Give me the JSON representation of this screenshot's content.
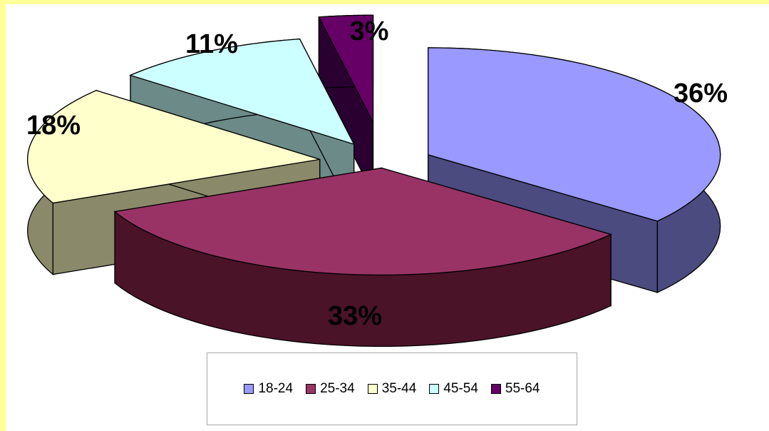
{
  "chart_data": {
    "type": "pie",
    "style": "3d-exploded",
    "legend_position": "bottom",
    "categories": [
      "18-24",
      "25-34",
      "35-44",
      "45-54",
      "55-64"
    ],
    "values": [
      36,
      33,
      18,
      11,
      3
    ],
    "data_labels": [
      "36%",
      "33%",
      "18%",
      "11%",
      "3%"
    ],
    "colors": {
      "top": [
        "#9999ff",
        "#993366",
        "#ffffcc",
        "#ccffff",
        "#660066"
      ],
      "side": [
        "#4b4b80",
        "#4a1328",
        "#8a8a6a",
        "#6b8a88",
        "#2a0030"
      ]
    }
  }
}
